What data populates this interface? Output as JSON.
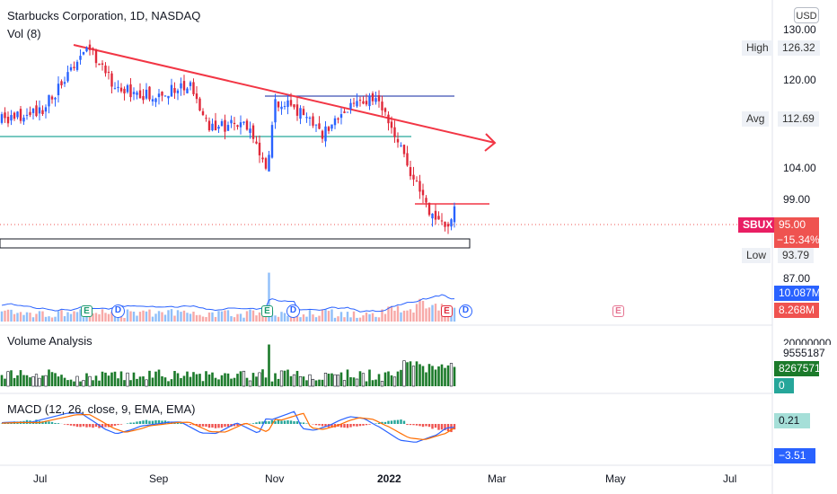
{
  "header": {
    "title": "Starbucks Corporation, 1D, NASDAQ",
    "vol_label": "Vol (8)",
    "currency": "USD"
  },
  "price_axis": {
    "ticks": [
      "130.00",
      "120.00",
      "104.00",
      "99.00",
      "87.00"
    ],
    "labels": {
      "high_name": "High",
      "high_value": "126.32",
      "avg_name": "Avg",
      "avg_value": "112.69",
      "symbol": "SBUX",
      "last_price": "95.00",
      "change_pct": "−15.34%",
      "low_name": "Low",
      "low_value": "93.79",
      "vol_ma": "10.087M",
      "vol_last": "8.268M"
    }
  },
  "volume_analysis": {
    "title": "Volume Analysis",
    "clipped_tick": "20000000",
    "value_1": "9555187",
    "value_2": "8267571",
    "value_3": "0"
  },
  "macd": {
    "title": "MACD (12, 26, close, 9, EMA, EMA)",
    "value_1": "0.21",
    "value_2": "−3.51"
  },
  "time_axis": [
    "Jul",
    "Sep",
    "Nov",
    "2022",
    "Mar",
    "May",
    "Jul"
  ],
  "events": {
    "earnings": "E",
    "dividend": "D"
  },
  "colors": {
    "up": "#2962ff",
    "down": "#e0293a",
    "trendline": "#f23645",
    "support": "#26a69a",
    "resistance": "#3f51b5",
    "vol_ma": "#2962ff",
    "macd_line": "#2962ff",
    "signal_line": "#ff6d00",
    "label_red": "#ef5350",
    "label_blue": "#2962ff",
    "label_green": "#1b7a2a",
    "label_teal": "#26a69a"
  },
  "chart_data": {
    "type": "candlestick",
    "title": "Starbucks Corporation, 1D, NASDAQ",
    "ticks_y": [
      130,
      120,
      104,
      99,
      87
    ],
    "price_close_series": [
      {
        "date": "2021-06-01",
        "close": 112
      },
      {
        "date": "2021-06-15",
        "close": 113
      },
      {
        "date": "2021-07-01",
        "close": 114
      },
      {
        "date": "2021-07-15",
        "close": 120
      },
      {
        "date": "2021-07-28",
        "close": 126
      },
      {
        "date": "2021-08-10",
        "close": 119
      },
      {
        "date": "2021-08-25",
        "close": 117
      },
      {
        "date": "2021-09-10",
        "close": 118
      },
      {
        "date": "2021-09-20",
        "close": 119
      },
      {
        "date": "2021-10-01",
        "close": 111
      },
      {
        "date": "2021-10-20",
        "close": 112
      },
      {
        "date": "2021-11-01",
        "close": 104
      },
      {
        "date": "2021-11-05",
        "close": 116
      },
      {
        "date": "2021-11-20",
        "close": 114
      },
      {
        "date": "2021-12-01",
        "close": 110
      },
      {
        "date": "2021-12-15",
        "close": 115
      },
      {
        "date": "2021-12-28",
        "close": 117
      },
      {
        "date": "2022-01-05",
        "close": 113
      },
      {
        "date": "2022-01-15",
        "close": 105
      },
      {
        "date": "2022-01-25",
        "close": 98
      },
      {
        "date": "2022-02-05",
        "close": 95
      },
      {
        "date": "2022-02-10",
        "close": 97
      },
      {
        "date": "2022-02-14",
        "close": 95
      }
    ],
    "high": 126.32,
    "low": 93.79,
    "avg": 112.69,
    "last": 95.0,
    "change_pct": -15.34,
    "volume_ma": "10.087M",
    "volume_last": "8.268M",
    "macd": 0.21,
    "signal": -3.51
  }
}
